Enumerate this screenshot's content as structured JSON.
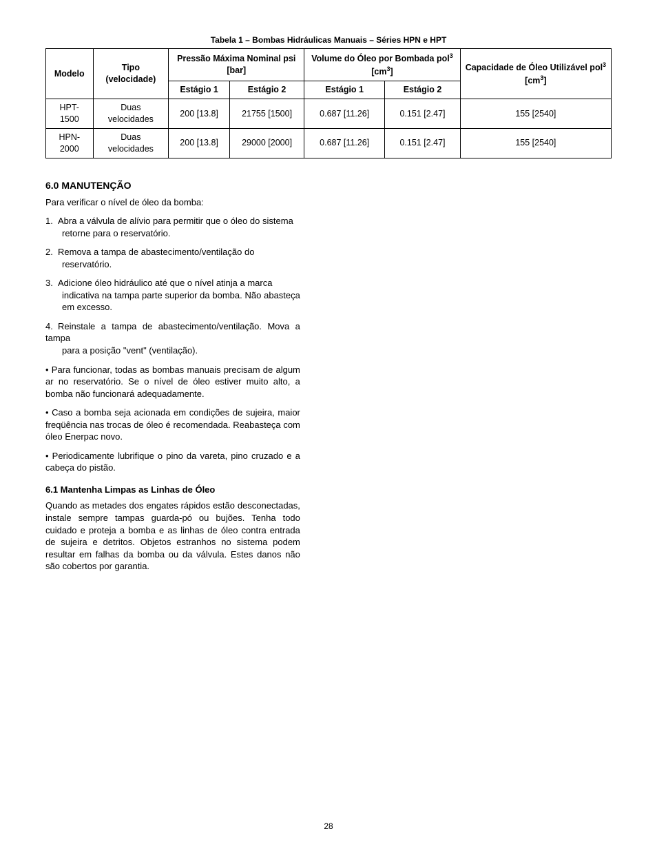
{
  "table": {
    "caption": "Tabela 1 – Bombas Hidráulicas Manuais – Séries HPN e HPT",
    "headers": {
      "modelo": "Modelo",
      "tipo": "Tipo (velocidade)",
      "pressao": "Pressão Máxima Nominal psi [bar]",
      "volume": "Volume do Óleo por Bombada pol",
      "volume_sup": "3",
      "volume_unit2": " [cm",
      "volume_unit2_sup": "3",
      "volume_close": "]",
      "capacidade": "Capacidade de Óleo Utilizável pol",
      "cap_sup": "3",
      "cap_unit2": " [cm",
      "cap_unit2_sup": "3",
      "cap_close": "]",
      "estagio1": "Estágio 1",
      "estagio2": "Estágio 2"
    },
    "rows": [
      {
        "modelo": "HPT-1500",
        "tipo": "Duas velocidades",
        "p1": "200 [13.8]",
        "p2": "21755 [1500]",
        "v1": "0.687 [11.26]",
        "v2": "0.151 [2.47]",
        "cap": "155 [2540]"
      },
      {
        "modelo": "HPN-2000",
        "tipo": "Duas velocidades",
        "p1": "200 [13.8]",
        "p2": "29000 [2000]",
        "v1": "0.687 [11.26]",
        "v2": "0.151 [2.47]",
        "cap": "155 [2540]"
      }
    ]
  },
  "section": {
    "h2": "6.0 MANUTENÇÃO",
    "intro": "Para verificar o nível de óleo da bomba:",
    "steps": [
      {
        "n": "1.",
        "t1": "Abra a válvula de alívio para permitir que o óleo do sistema",
        "t2": "retorne para o reservatório."
      },
      {
        "n": "2.",
        "t1": "Remova a tampa de abastecimento/ventilação do",
        "t2": "reservatório."
      },
      {
        "n": "3.",
        "t1": "Adicione óleo hidráulico até que o nível atinja a marca",
        "t2": "indicativa na tampa  parte superior da bomba. Não abasteça em excesso."
      },
      {
        "n": "4.",
        "t1": "Reinstale a tampa de abastecimento/ventilação. Mova a tampa",
        "t2": "para a posição \"vent\" (ventilação)."
      }
    ],
    "bullets": [
      "• Para funcionar, todas as bombas manuais precisam de algum ar no reservatório. Se o nível de óleo estiver muito alto, a bomba não funcionará adequadamente.",
      "• Caso a bomba seja acionada em condições de sujeira, maior freqüência nas trocas de óleo é recomendada. Reabasteça com óleo Enerpac novo.",
      "• Periodicamente lubrifique o pino da vareta, pino cruzado e a cabeça do pistão."
    ],
    "h3": "6.1 Mantenha Limpas as Linhas de Óleo",
    "p61": "Quando as metades dos engates rápidos estão desconectadas, instale sempre tampas guarda-pó ou bujões. Tenha todo cuidado e proteja a bomba e as linhas de óleo contra entrada de sujeira e detritos. Objetos estranhos no sistema podem resultar em falhas da bomba ou da válvula. Estes danos não são cobertos por garantia."
  },
  "pageNumber": "28"
}
